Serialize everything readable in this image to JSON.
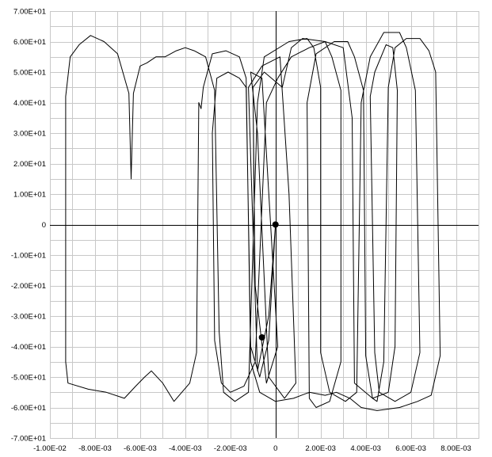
{
  "chart_data": {
    "type": "line",
    "title": "",
    "xlabel": "",
    "ylabel": "",
    "xlim": [
      -0.01,
      0.009
    ],
    "ylim": [
      -70,
      70
    ],
    "grid": true,
    "legend": "none",
    "x_ticks": [
      {
        "value": -0.01,
        "label": "-1.00E-02"
      },
      {
        "value": -0.008,
        "label": "-8.00E-03"
      },
      {
        "value": -0.006,
        "label": "-6.00E-03"
      },
      {
        "value": -0.004,
        "label": "-4.00E-03"
      },
      {
        "value": -0.002,
        "label": "-2.00E-03"
      },
      {
        "value": 0,
        "label": "0"
      },
      {
        "value": 0.002,
        "label": "2.00E-03"
      },
      {
        "value": 0.004,
        "label": "4.00E-03"
      },
      {
        "value": 0.006,
        "label": "6.00E-03"
      },
      {
        "value": 0.008,
        "label": "8.00E-03"
      }
    ],
    "y_ticks": [
      {
        "value": 70,
        "label": "7.00E+01"
      },
      {
        "value": 60,
        "label": "6.00E+01"
      },
      {
        "value": 50,
        "label": "5.00E+01"
      },
      {
        "value": 40,
        "label": "4.00E+01"
      },
      {
        "value": 30,
        "label": "3.00E+01"
      },
      {
        "value": 20,
        "label": "2.00E+01"
      },
      {
        "value": 10,
        "label": "1.00E+01"
      },
      {
        "value": 0,
        "label": "0"
      },
      {
        "value": -10,
        "label": "-1.00E+01"
      },
      {
        "value": -20,
        "label": "-2.00E+01"
      },
      {
        "value": -30,
        "label": "-3.00E+01"
      },
      {
        "value": -40,
        "label": "-4.00E+01"
      },
      {
        "value": -50,
        "label": "-5.00E+01"
      },
      {
        "value": -60,
        "label": "-6.00E+01"
      },
      {
        "value": -70,
        "label": "-7.00E+01"
      }
    ],
    "series": [
      {
        "color": "#000000",
        "points": [
          [
            0,
            0
          ],
          [
            -0.0003,
            -30
          ],
          [
            -0.0008,
            -48
          ],
          [
            -0.0012,
            45
          ],
          [
            -0.0006,
            52
          ],
          [
            0.0002,
            55
          ],
          [
            0.0006,
            10
          ],
          [
            0.0009,
            -52
          ],
          [
            0.0004,
            -57
          ],
          [
            -0.0003,
            -50
          ],
          [
            -0.0008,
            30
          ],
          [
            -0.0011,
            50
          ],
          [
            -0.0006,
            48
          ],
          [
            0.0001,
            -40
          ],
          [
            -0.0004,
            -52
          ],
          [
            -0.0009,
            -20
          ],
          [
            -0.001,
            45
          ],
          [
            -0.0005,
            50
          ],
          [
            0.0003,
            45
          ],
          [
            0.0007,
            58
          ],
          [
            0.0012,
            61
          ],
          [
            0.0022,
            60
          ],
          [
            0.0025,
            55
          ],
          [
            0.0029,
            44
          ],
          [
            0.0029,
            -45
          ],
          [
            0.0024,
            -58
          ],
          [
            0.0018,
            -60
          ],
          [
            0.0015,
            -57
          ],
          [
            0.0014,
            40
          ],
          [
            0.0018,
            56
          ],
          [
            0.0026,
            60
          ],
          [
            0.0032,
            60
          ],
          [
            0.0035,
            55
          ],
          [
            0.0039,
            44
          ],
          [
            0.004,
            -43
          ],
          [
            0.0043,
            -57
          ],
          [
            0.0045,
            -58
          ],
          [
            0.0048,
            -45
          ],
          [
            0.005,
            45
          ],
          [
            0.0053,
            58
          ],
          [
            0.0058,
            61
          ],
          [
            0.0064,
            61
          ],
          [
            0.0068,
            57
          ],
          [
            0.0071,
            50
          ],
          [
            0.0073,
            -43
          ],
          [
            0.0069,
            -56
          ],
          [
            0.0063,
            -58
          ],
          [
            0.0055,
            -60
          ],
          [
            0.0045,
            -61
          ],
          [
            0.0038,
            -60
          ],
          [
            0.0033,
            -57
          ],
          [
            0.0027,
            -55
          ],
          [
            0.0022,
            -56
          ],
          [
            0.0015,
            -55
          ],
          [
            0.0008,
            -57
          ],
          [
            0.0,
            -58
          ],
          [
            -0.0007,
            -55
          ],
          [
            -0.0011,
            -45
          ],
          [
            -0.0013,
            48
          ],
          [
            -0.0016,
            55
          ],
          [
            -0.0022,
            57
          ],
          [
            -0.0028,
            56
          ],
          [
            -0.0032,
            45
          ],
          [
            -0.0033,
            38
          ],
          [
            -0.0034,
            40
          ],
          [
            -0.0035,
            -42
          ],
          [
            -0.0038,
            -52
          ],
          [
            -0.0045,
            -58
          ],
          [
            -0.005,
            -52
          ],
          [
            -0.0055,
            -48
          ],
          [
            -0.0058,
            -50
          ],
          [
            -0.0062,
            -53
          ],
          [
            -0.0067,
            -57
          ],
          [
            -0.0075,
            -55
          ],
          [
            -0.0083,
            -54
          ],
          [
            -0.0092,
            -52
          ],
          [
            -0.0093,
            -45
          ],
          [
            -0.0093,
            42
          ],
          [
            -0.0091,
            55
          ],
          [
            -0.0087,
            59
          ],
          [
            -0.0082,
            62
          ],
          [
            -0.0076,
            60
          ],
          [
            -0.007,
            56
          ],
          [
            -0.0065,
            43
          ],
          [
            -0.0064,
            15
          ],
          [
            -0.0063,
            43
          ],
          [
            -0.006,
            52
          ],
          [
            -0.0057,
            53
          ],
          [
            -0.0053,
            55
          ],
          [
            -0.0049,
            55
          ],
          [
            -0.0044,
            57
          ],
          [
            -0.004,
            58
          ],
          [
            -0.0036,
            57
          ],
          [
            -0.0031,
            55
          ],
          [
            -0.0027,
            44
          ],
          [
            -0.0025,
            -35
          ],
          [
            -0.0023,
            -55
          ],
          [
            -0.0018,
            -58
          ],
          [
            -0.0012,
            -55
          ],
          [
            -0.0008,
            40
          ],
          [
            -0.0005,
            55
          ],
          [
            0.0006,
            60
          ],
          [
            0.0014,
            61
          ],
          [
            0.0017,
            58
          ],
          [
            0.002,
            45
          ],
          [
            0.002,
            -42
          ],
          [
            0.0024,
            -55
          ],
          [
            0.0031,
            -58
          ],
          [
            0.0036,
            -55
          ],
          [
            0.0038,
            40
          ],
          [
            0.0042,
            55
          ],
          [
            0.0048,
            63
          ],
          [
            0.0055,
            63
          ],
          [
            0.0058,
            58
          ],
          [
            0.0062,
            44
          ],
          [
            0.0064,
            -42
          ],
          [
            0.006,
            -55
          ],
          [
            0.0053,
            -58
          ],
          [
            0.0046,
            -55
          ],
          [
            0.0044,
            -42
          ],
          [
            0.0042,
            42
          ],
          [
            0.0044,
            50
          ],
          [
            0.0049,
            59
          ],
          [
            0.0052,
            58
          ],
          [
            0.0054,
            44
          ],
          [
            0.0053,
            -40
          ],
          [
            0.005,
            -55
          ],
          [
            0.0043,
            -57
          ],
          [
            0.0035,
            -52
          ],
          [
            0.0034,
            35
          ],
          [
            0.003,
            58
          ],
          [
            0.0022,
            60
          ],
          [
            0.0015,
            58
          ],
          [
            0.0007,
            55
          ],
          [
            0.0001,
            48
          ],
          [
            -0.0004,
            40
          ],
          [
            -0.0009,
            -45
          ],
          [
            -0.0014,
            -53
          ],
          [
            -0.002,
            -55
          ],
          [
            -0.0024,
            -52
          ],
          [
            -0.0027,
            -38
          ],
          [
            -0.0028,
            30
          ],
          [
            -0.0026,
            48
          ],
          [
            -0.0021,
            50
          ],
          [
            -0.0016,
            48
          ],
          [
            -0.0013,
            45
          ],
          [
            -0.0011,
            -40
          ],
          [
            -0.0007,
            -50
          ],
          [
            -0.0003,
            -38
          ],
          [
            0,
            0
          ]
        ]
      }
    ],
    "markers": [
      [
        0,
        0
      ],
      [
        -0.0006,
        -37
      ]
    ]
  }
}
